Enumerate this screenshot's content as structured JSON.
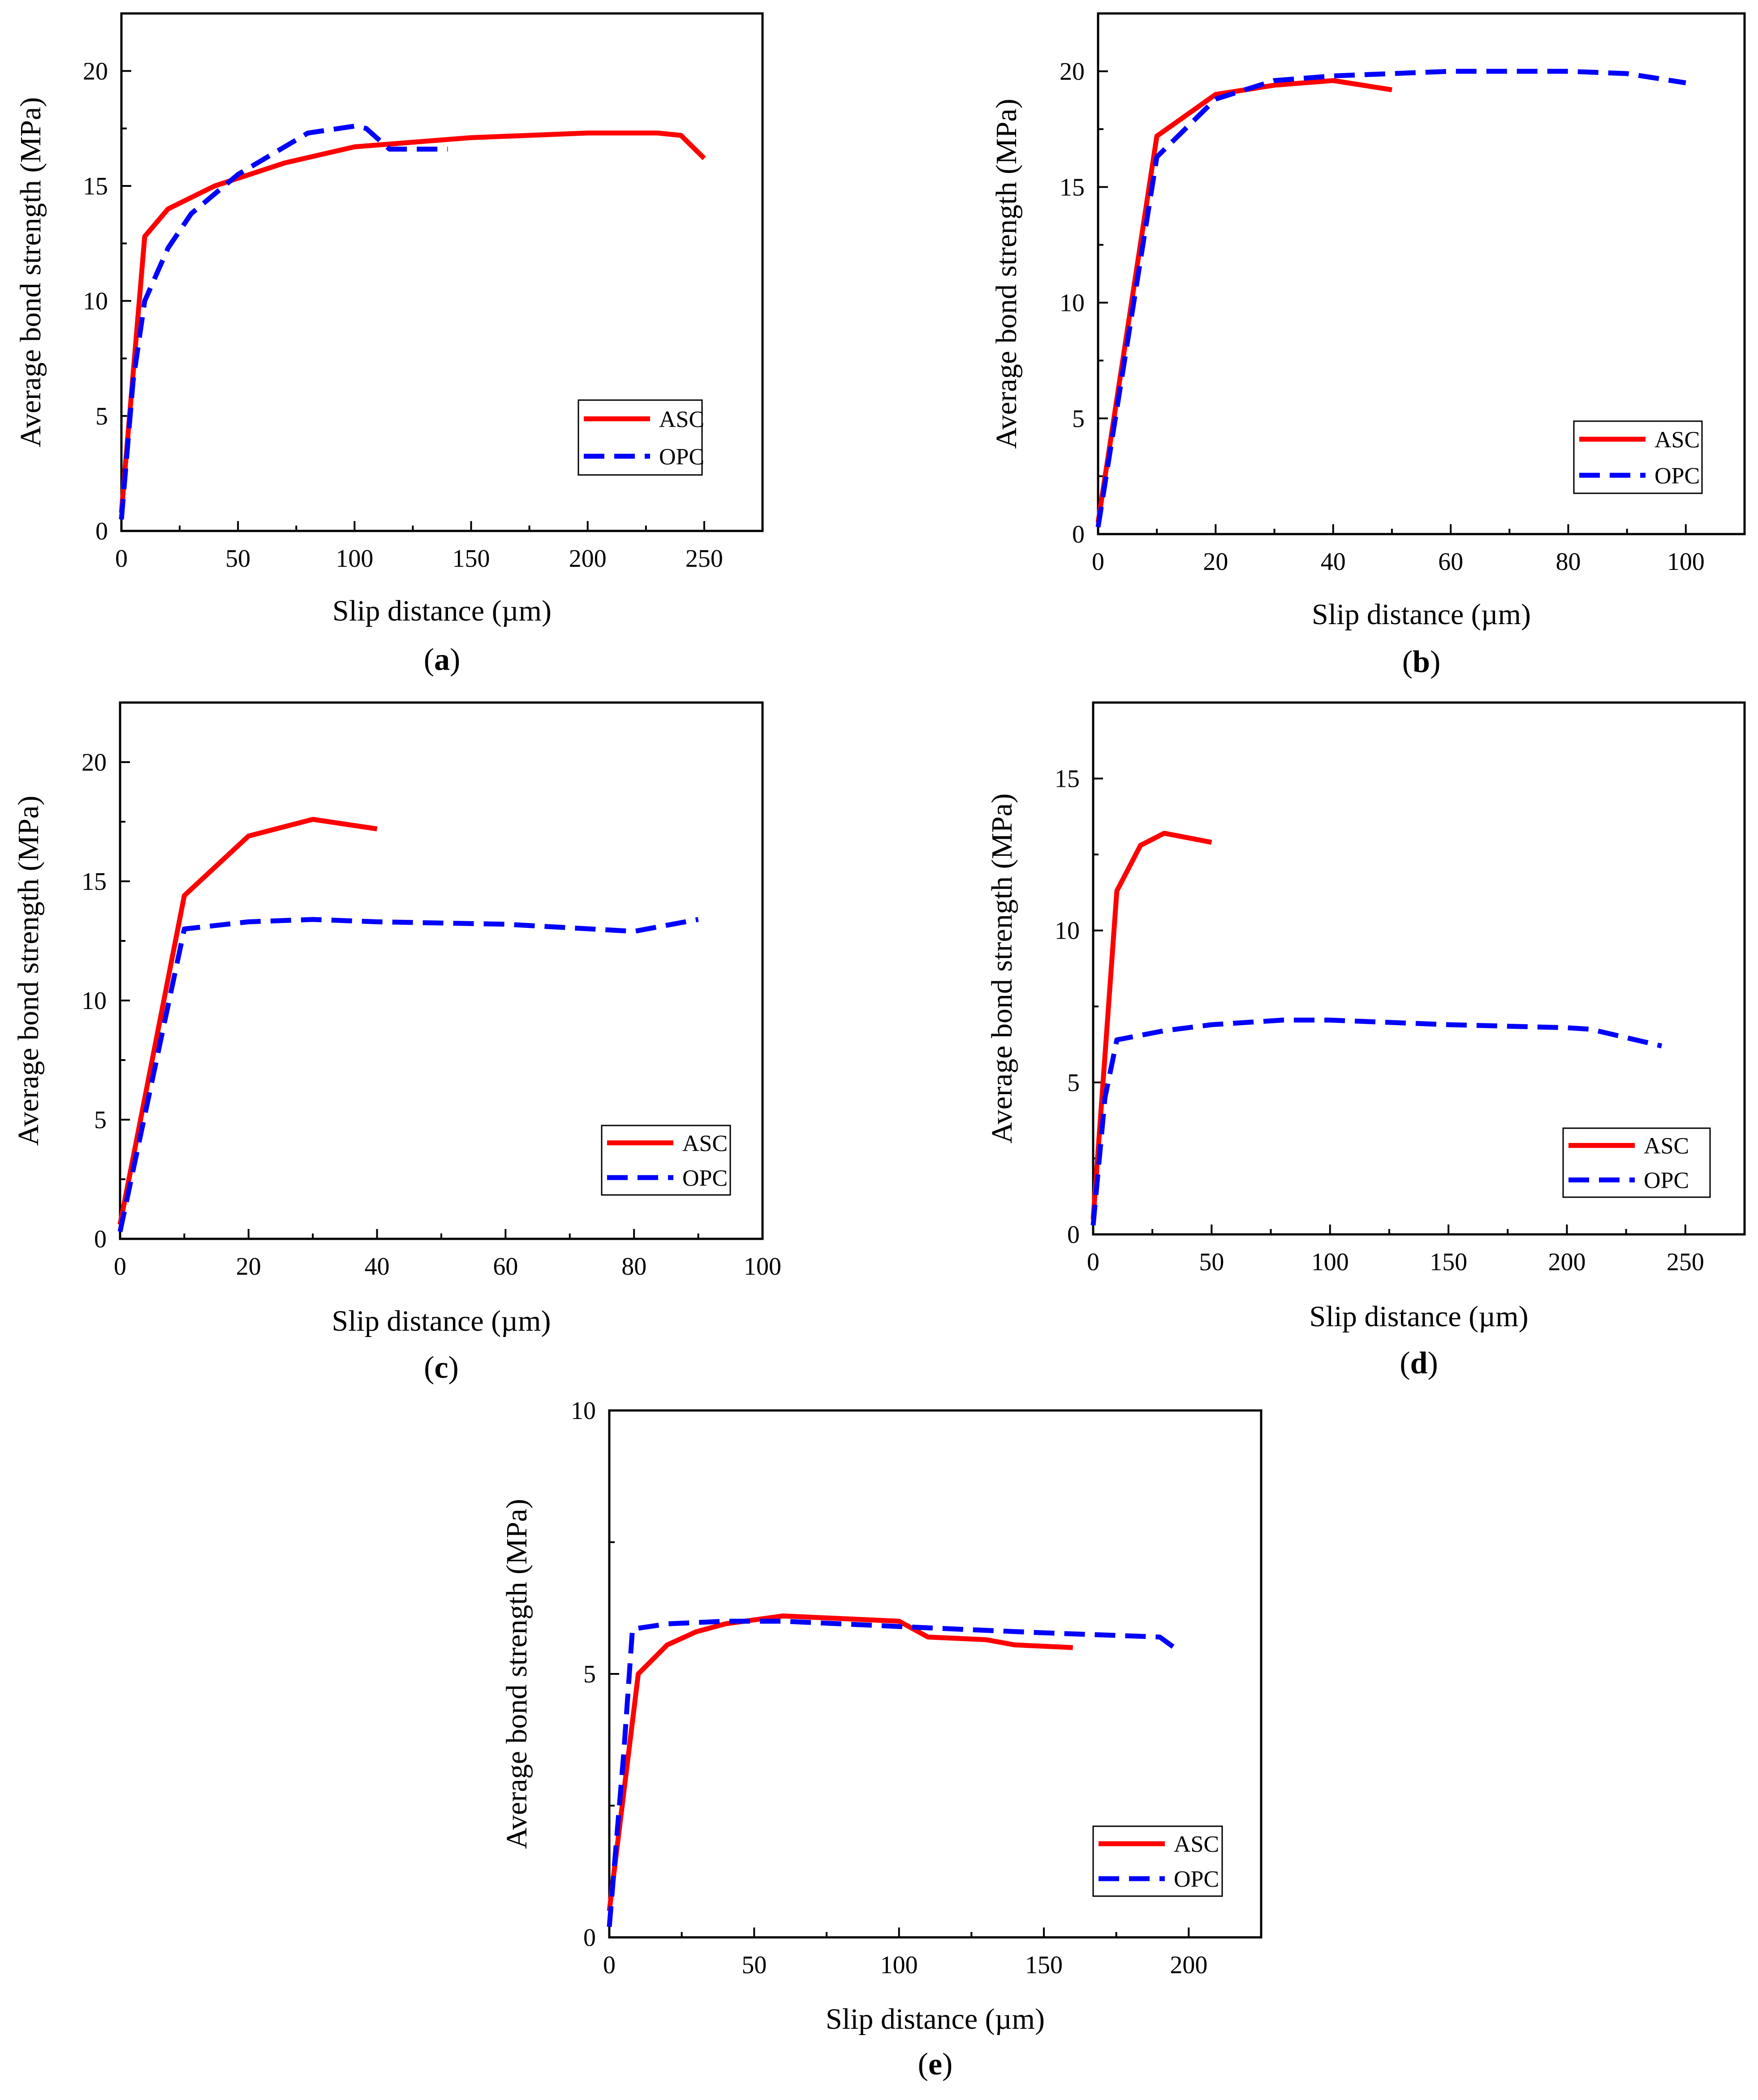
{
  "colors": {
    "ASC": "#ff0000",
    "OPC": "#0000ff"
  },
  "chart_data": [
    {
      "panel": "(a)",
      "panel_letter": "a",
      "type": "line",
      "xlabel": "Slip distance (µm)",
      "ylabel": "Average bond strength (MPa)",
      "xlim": [
        0,
        275
      ],
      "ylim": [
        0,
        22.5
      ],
      "xticks": [
        0,
        50,
        100,
        150,
        200,
        250
      ],
      "yticks": [
        0,
        5,
        10,
        15,
        20
      ],
      "legend": "bottom-right",
      "grid": false,
      "series": [
        {
          "name": "ASC",
          "style": "solid",
          "x": [
            0,
            10,
            20,
            40,
            70,
            100,
            150,
            200,
            230,
            240,
            250
          ],
          "y": [
            0.8,
            12.8,
            14.0,
            15.0,
            16.0,
            16.7,
            17.1,
            17.3,
            17.3,
            17.2,
            16.2
          ]
        },
        {
          "name": "OPC",
          "style": "dashed",
          "x": [
            0,
            5,
            10,
            20,
            30,
            50,
            80,
            100,
            105,
            115,
            140
          ],
          "y": [
            0.5,
            6.5,
            10.0,
            12.3,
            13.8,
            15.5,
            17.3,
            17.6,
            17.5,
            16.6,
            16.6
          ]
        }
      ]
    },
    {
      "panel": "(b)",
      "panel_letter": "b",
      "type": "line",
      "xlabel": "Slip distance (µm)",
      "ylabel": "Average bond strength (MPa)",
      "xlim": [
        0,
        110
      ],
      "ylim": [
        0,
        22.5
      ],
      "xticks": [
        0,
        20,
        40,
        60,
        80,
        100
      ],
      "yticks": [
        0,
        5,
        10,
        15,
        20
      ],
      "legend": "bottom-right",
      "grid": false,
      "series": [
        {
          "name": "ASC",
          "style": "solid",
          "x": [
            0,
            10,
            20,
            30,
            40,
            50
          ],
          "y": [
            0.5,
            17.2,
            19.0,
            19.4,
            19.6,
            19.2
          ]
        },
        {
          "name": "OPC",
          "style": "dashed",
          "x": [
            0,
            10,
            20,
            30,
            40,
            60,
            80,
            90,
            100
          ],
          "y": [
            0.3,
            16.3,
            18.8,
            19.6,
            19.8,
            20.0,
            20.0,
            19.9,
            19.5
          ]
        }
      ]
    },
    {
      "panel": "(c)",
      "panel_letter": "c",
      "type": "line",
      "xlabel": "Slip distance (µm)",
      "ylabel": "Average bond strength (MPa)",
      "xlim": [
        0,
        100
      ],
      "ylim": [
        0,
        22.5
      ],
      "xticks": [
        0,
        20,
        40,
        60,
        80,
        100
      ],
      "yticks": [
        0,
        5,
        10,
        15,
        20
      ],
      "legend": "bottom-right",
      "grid": false,
      "series": [
        {
          "name": "ASC",
          "style": "solid",
          "x": [
            0,
            10,
            20,
            30,
            40
          ],
          "y": [
            0.6,
            14.4,
            16.9,
            17.6,
            17.2
          ]
        },
        {
          "name": "OPC",
          "style": "dashed",
          "x": [
            0,
            10,
            20,
            30,
            40,
            60,
            80,
            90
          ],
          "y": [
            0.3,
            13.0,
            13.3,
            13.4,
            13.3,
            13.2,
            12.9,
            13.4
          ]
        }
      ]
    },
    {
      "panel": "(d)",
      "panel_letter": "d",
      "type": "line",
      "xlabel": "Slip distance (µm)",
      "ylabel": "Average bond strength (MPa)",
      "xlim": [
        0,
        275
      ],
      "ylim": [
        0,
        17.5
      ],
      "xticks": [
        0,
        50,
        100,
        150,
        200,
        250
      ],
      "yticks": [
        0,
        5,
        10,
        15
      ],
      "legend": "bottom-right",
      "grid": false,
      "series": [
        {
          "name": "ASC",
          "style": "solid",
          "x": [
            0,
            10,
            20,
            30,
            50
          ],
          "y": [
            0.5,
            11.3,
            12.8,
            13.2,
            12.9
          ]
        },
        {
          "name": "OPC",
          "style": "dashed",
          "x": [
            0,
            5,
            10,
            30,
            50,
            80,
            100,
            150,
            200,
            210,
            240
          ],
          "y": [
            0.3,
            4.5,
            6.4,
            6.7,
            6.9,
            7.05,
            7.05,
            6.9,
            6.8,
            6.75,
            6.2
          ]
        }
      ]
    },
    {
      "panel": "(e)",
      "panel_letter": "e",
      "type": "line",
      "xlabel": "Slip distance (µm)",
      "ylabel": "Average bond strength (MPa)",
      "xlim": [
        0,
        225
      ],
      "ylim": [
        0,
        10
      ],
      "xticks": [
        0,
        50,
        100,
        150,
        200
      ],
      "yticks": [
        0,
        5,
        10
      ],
      "legend": "bottom-right",
      "grid": false,
      "series": [
        {
          "name": "ASC",
          "style": "solid",
          "x": [
            0,
            10,
            20,
            30,
            40,
            60,
            80,
            100,
            110,
            130,
            140,
            160
          ],
          "y": [
            0.5,
            5.0,
            5.55,
            5.8,
            5.95,
            6.1,
            6.05,
            6.0,
            5.7,
            5.65,
            5.55,
            5.5
          ]
        },
        {
          "name": "OPC",
          "style": "dashed",
          "x": [
            0,
            5,
            8,
            20,
            40,
            60,
            80,
            100,
            120,
            150,
            180,
            190,
            195
          ],
          "y": [
            0.2,
            3.5,
            5.85,
            5.95,
            6.0,
            6.0,
            5.95,
            5.9,
            5.85,
            5.78,
            5.72,
            5.7,
            5.5
          ]
        }
      ]
    }
  ]
}
